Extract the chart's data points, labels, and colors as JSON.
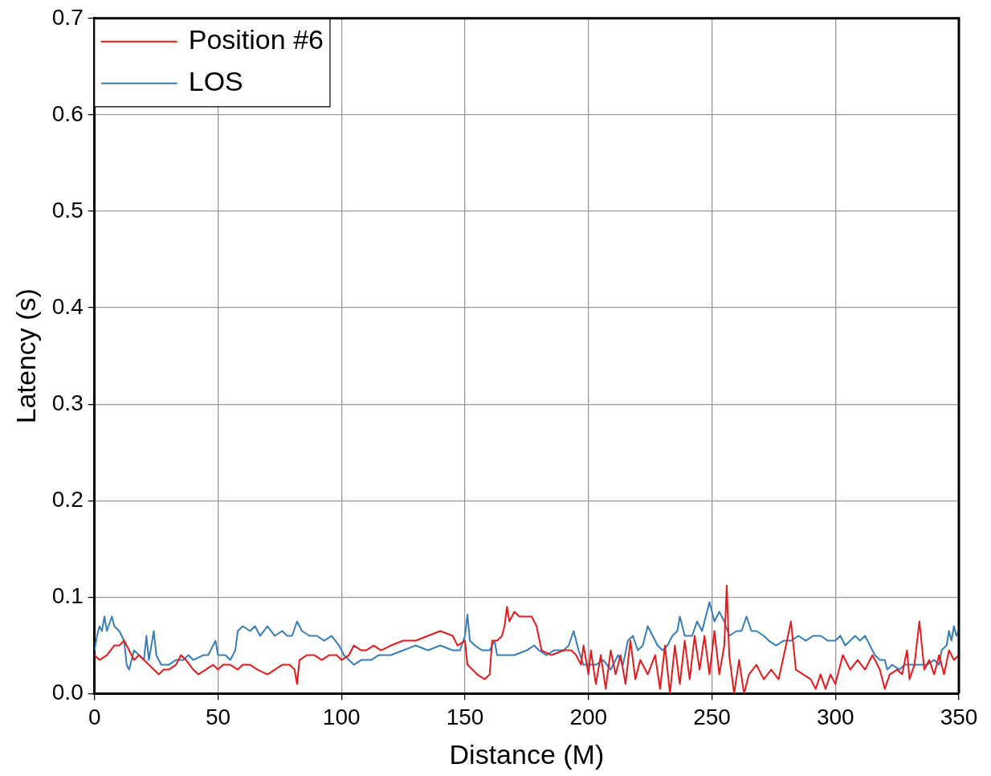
{
  "chart_data": {
    "type": "line",
    "xlabel": "Distance (M)",
    "ylabel": "Latency (s)",
    "xlim": [
      0,
      350
    ],
    "xticks": [
      0,
      50,
      100,
      150,
      200,
      250,
      300,
      350
    ],
    "ylim": [
      0,
      0.7
    ],
    "yticks": [
      {
        "value": 0,
        "label": "0.0"
      },
      0.1,
      0.2,
      0.3,
      0.4,
      0.5,
      0.6,
      0.7
    ],
    "grid": true,
    "legend": "top left",
    "marker": "none",
    "line_style": "solid",
    "series": [
      {
        "name": "Position #6",
        "color": "#e41a1c",
        "x": [
          0,
          2,
          5,
          8,
          10,
          12,
          14,
          16,
          18,
          20,
          22,
          24,
          26,
          28,
          30,
          33,
          35,
          37,
          40,
          42,
          45,
          48,
          50,
          52,
          55,
          58,
          60,
          63,
          66,
          70,
          73,
          76,
          79,
          81,
          82,
          83,
          86,
          89,
          92,
          95,
          98,
          100,
          103,
          105,
          108,
          110,
          113,
          116,
          120,
          125,
          130,
          135,
          140,
          145,
          147,
          150,
          151,
          153,
          155,
          158,
          160,
          161,
          163,
          165,
          166,
          167,
          168,
          170,
          172,
          175,
          177,
          179,
          181,
          185,
          190,
          193,
          195,
          197,
          198,
          200,
          201,
          203,
          205,
          207,
          209,
          211,
          213,
          215,
          217,
          219,
          221,
          224,
          227,
          229,
          231,
          233,
          235,
          237,
          239,
          241,
          243,
          245,
          247,
          249,
          251,
          253,
          255,
          256,
          257,
          259,
          261,
          263,
          265,
          268,
          271,
          274,
          277,
          280,
          282,
          284,
          287,
          290,
          292,
          294,
          296,
          298,
          300,
          303,
          306,
          309,
          312,
          315,
          318,
          320,
          322,
          325,
          327,
          329,
          330,
          332,
          334,
          336,
          338,
          340,
          342,
          344,
          346,
          348,
          350
        ],
        "values": [
          0.04,
          0.035,
          0.04,
          0.05,
          0.05,
          0.055,
          0.045,
          0.035,
          0.04,
          0.035,
          0.03,
          0.025,
          0.02,
          0.025,
          0.025,
          0.03,
          0.04,
          0.035,
          0.025,
          0.02,
          0.025,
          0.03,
          0.025,
          0.03,
          0.03,
          0.025,
          0.03,
          0.03,
          0.025,
          0.02,
          0.025,
          0.03,
          0.03,
          0.025,
          0.01,
          0.035,
          0.04,
          0.04,
          0.035,
          0.04,
          0.04,
          0.035,
          0.04,
          0.05,
          0.045,
          0.045,
          0.05,
          0.045,
          0.05,
          0.055,
          0.055,
          0.06,
          0.065,
          0.06,
          0.05,
          0.055,
          0.03,
          0.025,
          0.02,
          0.015,
          0.02,
          0.055,
          0.055,
          0.06,
          0.07,
          0.09,
          0.075,
          0.085,
          0.08,
          0.08,
          0.08,
          0.07,
          0.045,
          0.04,
          0.045,
          0.045,
          0.04,
          0.03,
          0.05,
          0.02,
          0.045,
          0.01,
          0.04,
          0.005,
          0.045,
          0.02,
          0.04,
          0.01,
          0.055,
          0.015,
          0.035,
          0.02,
          0.04,
          0.005,
          0.05,
          0.0,
          0.05,
          0.01,
          0.055,
          0.015,
          0.06,
          0.025,
          0.06,
          0.02,
          0.065,
          0.02,
          0.05,
          0.112,
          0.04,
          0.0,
          0.035,
          0.0,
          0.02,
          0.03,
          0.015,
          0.025,
          0.015,
          0.05,
          0.075,
          0.025,
          0.02,
          0.015,
          0.005,
          0.02,
          0.005,
          0.02,
          0.01,
          0.04,
          0.025,
          0.035,
          0.025,
          0.04,
          0.025,
          0.005,
          0.02,
          0.025,
          0.02,
          0.045,
          0.015,
          0.03,
          0.075,
          0.025,
          0.035,
          0.02,
          0.04,
          0.02,
          0.045,
          0.035,
          0.04
        ]
      },
      {
        "name": "LOS",
        "color": "#377eb8",
        "x": [
          0,
          1,
          2,
          3,
          4,
          5,
          7,
          8,
          10,
          12,
          13,
          14,
          16,
          18,
          20,
          21,
          22,
          24,
          25,
          27,
          30,
          33,
          36,
          38,
          40,
          44,
          46,
          49,
          50,
          53,
          55,
          57,
          58,
          60,
          63,
          65,
          67,
          70,
          73,
          76,
          78,
          80,
          82,
          84,
          87,
          90,
          93,
          96,
          99,
          101,
          103,
          105,
          108,
          112,
          115,
          120,
          125,
          130,
          135,
          140,
          145,
          148,
          150,
          151,
          152,
          154,
          157,
          160,
          162,
          163,
          166,
          170,
          175,
          178,
          180,
          183,
          186,
          190,
          192,
          194,
          196,
          198,
          200,
          203,
          206,
          209,
          212,
          214,
          216,
          218,
          220,
          222,
          224,
          226,
          228,
          230,
          232,
          234,
          236,
          237,
          239,
          242,
          244,
          246,
          248,
          249,
          251,
          253,
          255,
          257,
          260,
          262,
          264,
          266,
          268,
          271,
          273,
          276,
          279,
          282,
          285,
          288,
          291,
          294,
          297,
          300,
          302,
          304,
          306,
          308,
          310,
          312,
          314,
          316,
          318,
          320,
          321,
          323,
          326,
          328,
          331,
          334,
          337,
          340,
          342,
          343,
          345,
          346,
          347,
          348,
          349,
          350
        ],
        "values": [
          0.045,
          0.06,
          0.07,
          0.065,
          0.08,
          0.065,
          0.08,
          0.07,
          0.065,
          0.055,
          0.03,
          0.025,
          0.045,
          0.04,
          0.035,
          0.06,
          0.035,
          0.065,
          0.04,
          0.03,
          0.03,
          0.035,
          0.035,
          0.04,
          0.035,
          0.04,
          0.04,
          0.055,
          0.04,
          0.04,
          0.035,
          0.045,
          0.065,
          0.07,
          0.065,
          0.07,
          0.06,
          0.07,
          0.06,
          0.065,
          0.06,
          0.06,
          0.075,
          0.065,
          0.06,
          0.06,
          0.055,
          0.06,
          0.05,
          0.04,
          0.035,
          0.03,
          0.035,
          0.035,
          0.04,
          0.04,
          0.045,
          0.05,
          0.045,
          0.05,
          0.045,
          0.045,
          0.06,
          0.082,
          0.055,
          0.05,
          0.045,
          0.045,
          0.055,
          0.04,
          0.04,
          0.04,
          0.045,
          0.05,
          0.045,
          0.04,
          0.045,
          0.045,
          0.05,
          0.065,
          0.045,
          0.03,
          0.03,
          0.03,
          0.035,
          0.025,
          0.04,
          0.03,
          0.055,
          0.06,
          0.045,
          0.05,
          0.07,
          0.06,
          0.05,
          0.045,
          0.05,
          0.06,
          0.065,
          0.08,
          0.06,
          0.06,
          0.075,
          0.065,
          0.085,
          0.095,
          0.075,
          0.085,
          0.075,
          0.06,
          0.065,
          0.065,
          0.08,
          0.065,
          0.065,
          0.06,
          0.055,
          0.05,
          0.055,
          0.055,
          0.06,
          0.055,
          0.06,
          0.06,
          0.055,
          0.055,
          0.06,
          0.05,
          0.055,
          0.06,
          0.055,
          0.06,
          0.05,
          0.04,
          0.035,
          0.035,
          0.025,
          0.03,
          0.025,
          0.03,
          0.03,
          0.03,
          0.03,
          0.035,
          0.03,
          0.045,
          0.05,
          0.065,
          0.055,
          0.07,
          0.06,
          0.065
        ]
      }
    ]
  }
}
